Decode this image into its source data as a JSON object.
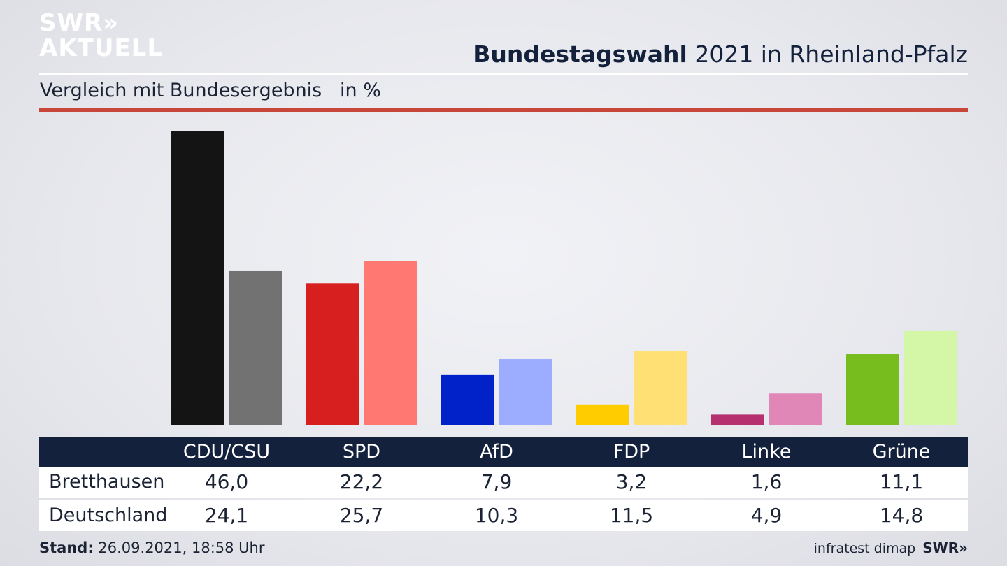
{
  "logo": {
    "line1": "SWR»",
    "line2": "AKTUELL"
  },
  "header": {
    "title_bold": "Bundestagswahl",
    "title_rest": " 2021 in Rheinland-Pfalz",
    "subtitle": "Vergleich mit Bundesergebnis   in %"
  },
  "chart_data": {
    "type": "bar",
    "categories": [
      "CDU/CSU",
      "SPD",
      "AfD",
      "FDP",
      "Linke",
      "Grüne"
    ],
    "series": [
      {
        "name": "Bretthausen",
        "values": [
          46.0,
          22.2,
          7.9,
          3.2,
          1.6,
          11.1
        ],
        "colors": [
          "#141414",
          "#d71f1f",
          "#0022c8",
          "#ffcc00",
          "#b6306f",
          "#76bd1d"
        ]
      },
      {
        "name": "Deutschland",
        "values": [
          24.1,
          25.7,
          10.3,
          11.5,
          4.9,
          14.8
        ],
        "colors": [
          "#737272",
          "#ff7871",
          "#9cadff",
          "#ffe074",
          "#e087b7",
          "#d4f6a7"
        ]
      }
    ],
    "display_values": [
      [
        "46,0",
        "22,2",
        "7,9",
        "3,2",
        "1,6",
        "11,1"
      ],
      [
        "24,1",
        "25,7",
        "10,3",
        "11,5",
        "4,9",
        "14,8"
      ]
    ],
    "ylim": [
      0,
      46
    ]
  },
  "footer": {
    "stand_label": "Stand:",
    "stand_value": " 26.09.2021, 18:58 Uhr",
    "source": "infratest dimap",
    "brand": "SWR»"
  }
}
